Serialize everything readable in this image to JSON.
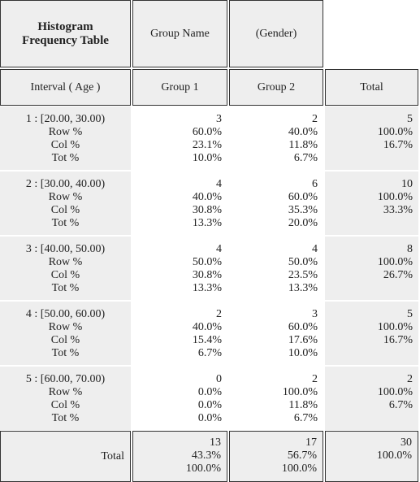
{
  "header": {
    "title": "Histogram Frequency Table",
    "group_name": "Group Name",
    "group_var": "(Gender)"
  },
  "columns": [
    "Interval ( Age )",
    "Group 1",
    "Group 2",
    "Total"
  ],
  "row_labels": [
    "Row %",
    "Col %",
    "Tot %"
  ],
  "rows": [
    {
      "interval": "1 : [20.00, 30.00)",
      "cells": [
        [
          "3",
          "60.0%",
          "23.1%",
          "10.0%"
        ],
        [
          "2",
          "40.0%",
          "11.8%",
          "6.7%"
        ],
        [
          "5",
          "100.0%",
          "16.7%"
        ]
      ]
    },
    {
      "interval": "2 : [30.00, 40.00)",
      "cells": [
        [
          "4",
          "40.0%",
          "30.8%",
          "13.3%"
        ],
        [
          "6",
          "60.0%",
          "35.3%",
          "20.0%"
        ],
        [
          "10",
          "100.0%",
          "33.3%"
        ]
      ]
    },
    {
      "interval": "3 : [40.00, 50.00)",
      "cells": [
        [
          "4",
          "50.0%",
          "30.8%",
          "13.3%"
        ],
        [
          "4",
          "50.0%",
          "23.5%",
          "13.3%"
        ],
        [
          "8",
          "100.0%",
          "26.7%"
        ]
      ]
    },
    {
      "interval": "4 : [50.00, 60.00)",
      "cells": [
        [
          "2",
          "40.0%",
          "15.4%",
          "6.7%"
        ],
        [
          "3",
          "60.0%",
          "17.6%",
          "10.0%"
        ],
        [
          "5",
          "100.0%",
          "16.7%"
        ]
      ]
    },
    {
      "interval": "5 : [60.00, 70.00)",
      "cells": [
        [
          "0",
          "0.0%",
          "0.0%",
          "0.0%"
        ],
        [
          "2",
          "100.0%",
          "11.8%",
          "6.7%"
        ],
        [
          "2",
          "100.0%",
          "6.7%"
        ]
      ]
    }
  ],
  "total": {
    "label": "Total",
    "cells": [
      [
        "13",
        "43.3%",
        "100.0%"
      ],
      [
        "17",
        "56.7%",
        "100.0%"
      ],
      [
        "30",
        "100.0%"
      ]
    ]
  }
}
